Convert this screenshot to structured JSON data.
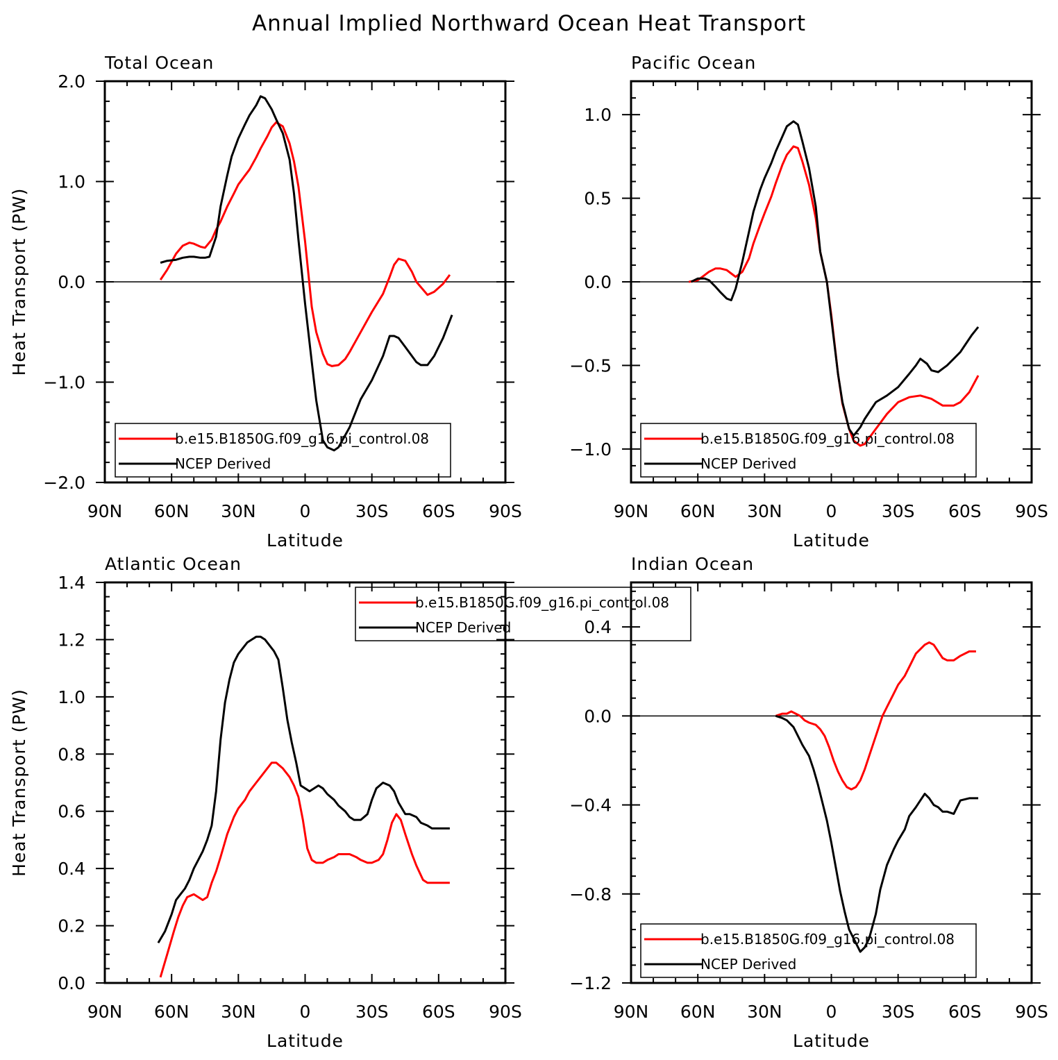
{
  "figure": {
    "title": "Annual Implied Northward Ocean Heat Transport",
    "xlabel": "Latitude",
    "ylabel": "Heat Transport (PW)"
  },
  "colors": {
    "model": "#ff0000",
    "obs": "#000000",
    "axes": "#000000"
  },
  "chart_data": [
    {
      "type": "line",
      "title": "Total Ocean",
      "xlabel": "Latitude",
      "ylabel": "Heat Transport (PW)",
      "xlim": [
        90,
        -90
      ],
      "ylim": [
        -2.0,
        2.0
      ],
      "xticks": [
        90,
        60,
        30,
        0,
        -30,
        -60,
        -90
      ],
      "xtick_labels": [
        "90N",
        "60N",
        "30N",
        "0",
        "30S",
        "60S",
        "90S"
      ],
      "yticks": [
        -2.0,
        -1.0,
        0.0,
        1.0,
        2.0
      ],
      "ytick_labels": [
        "−2.0",
        "−1.0",
        "0.0",
        "1.0",
        "2.0"
      ],
      "yminor": 0.2,
      "zero_line": true,
      "legend": "bottom-left",
      "series": [
        {
          "name": "b.e15.B1850G.f09_g16.pi_control.08",
          "color": "#ff0000",
          "x": [
            65,
            62,
            58,
            55,
            52,
            50,
            47,
            45,
            42,
            40,
            38,
            35,
            32,
            30,
            27,
            25,
            22,
            20,
            17,
            15,
            13,
            10,
            7,
            5,
            3,
            0,
            -3,
            -5,
            -8,
            -10,
            -12,
            -15,
            -18,
            -20,
            -25,
            -30,
            -35,
            -38,
            -40,
            -42,
            -45,
            -48,
            -50,
            -55,
            -58,
            -62,
            -65
          ],
          "y": [
            0.02,
            0.12,
            0.28,
            0.36,
            0.39,
            0.38,
            0.35,
            0.34,
            0.42,
            0.52,
            0.6,
            0.75,
            0.88,
            0.97,
            1.06,
            1.12,
            1.24,
            1.33,
            1.45,
            1.54,
            1.59,
            1.55,
            1.38,
            1.2,
            0.95,
            0.4,
            -0.25,
            -0.5,
            -0.72,
            -0.82,
            -0.84,
            -0.83,
            -0.77,
            -0.7,
            -0.5,
            -0.3,
            -0.12,
            0.05,
            0.17,
            0.23,
            0.21,
            0.1,
            0.0,
            -0.13,
            -0.1,
            -0.02,
            0.07
          ]
        },
        {
          "name": "NCEP Derived",
          "color": "#000000",
          "x": [
            65,
            62,
            58,
            55,
            52,
            50,
            47,
            45,
            43,
            40,
            38,
            35,
            33,
            30,
            27,
            25,
            22,
            20,
            18,
            15,
            13,
            10,
            7,
            5,
            3,
            0,
            -3,
            -5,
            -8,
            -10,
            -13,
            -15,
            -20,
            -25,
            -30,
            -35,
            -38,
            -40,
            -42,
            -45,
            -50,
            -52,
            -55,
            -58,
            -62,
            -66
          ],
          "y": [
            0.19,
            0.21,
            0.22,
            0.24,
            0.25,
            0.25,
            0.24,
            0.24,
            0.25,
            0.45,
            0.75,
            1.06,
            1.25,
            1.43,
            1.57,
            1.66,
            1.76,
            1.85,
            1.83,
            1.72,
            1.62,
            1.48,
            1.22,
            0.88,
            0.42,
            -0.22,
            -0.8,
            -1.18,
            -1.58,
            -1.65,
            -1.68,
            -1.65,
            -1.45,
            -1.17,
            -0.98,
            -0.74,
            -0.54,
            -0.54,
            -0.56,
            -0.65,
            -0.8,
            -0.83,
            -0.83,
            -0.74,
            -0.56,
            -0.33
          ]
        }
      ]
    },
    {
      "type": "line",
      "title": "Pacific Ocean",
      "xlabel": "Latitude",
      "ylabel": "",
      "xlim": [
        90,
        -90
      ],
      "ylim": [
        -1.2,
        1.2
      ],
      "xticks": [
        90,
        60,
        30,
        0,
        -30,
        -60,
        -90
      ],
      "xtick_labels": [
        "90N",
        "60N",
        "30N",
        "0",
        "30S",
        "60S",
        "90S"
      ],
      "yticks": [
        -1.0,
        -0.5,
        0.0,
        0.5,
        1.0
      ],
      "ytick_labels": [
        "−1.0",
        "−0.5",
        "0.0",
        "0.5",
        "1.0"
      ],
      "yminor": 0.1,
      "zero_line": true,
      "legend": "bottom-left",
      "series": [
        {
          "name": "b.e15.B1850G.f09_g16.pi_control.08",
          "color": "#ff0000",
          "x": [
            64,
            60,
            57,
            55,
            52,
            50,
            47,
            45,
            43,
            40,
            37,
            35,
            32,
            30,
            27,
            25,
            22,
            20,
            17,
            15,
            13,
            10,
            7,
            5,
            2,
            0,
            -3,
            -5,
            -8,
            -10,
            -13,
            -15,
            -20,
            -25,
            -30,
            -35,
            -40,
            -45,
            -50,
            -55,
            -58,
            -62,
            -66
          ],
          "y": [
            0.0,
            0.01,
            0.04,
            0.06,
            0.08,
            0.08,
            0.07,
            0.05,
            0.03,
            0.06,
            0.14,
            0.23,
            0.34,
            0.41,
            0.51,
            0.59,
            0.7,
            0.76,
            0.81,
            0.8,
            0.72,
            0.58,
            0.38,
            0.18,
            0.0,
            -0.2,
            -0.55,
            -0.73,
            -0.88,
            -0.95,
            -0.98,
            -0.97,
            -0.88,
            -0.79,
            -0.72,
            -0.69,
            -0.68,
            -0.7,
            -0.74,
            -0.74,
            -0.72,
            -0.66,
            -0.56
          ]
        },
        {
          "name": "NCEP Derived",
          "color": "#000000",
          "x": [
            63,
            60,
            57,
            55,
            52,
            50,
            47,
            45,
            43,
            40,
            37,
            35,
            32,
            30,
            27,
            25,
            22,
            20,
            17,
            15,
            13,
            10,
            7,
            5,
            2,
            0,
            -3,
            -5,
            -8,
            -10,
            -13,
            -15,
            -18,
            -20,
            -25,
            -30,
            -35,
            -38,
            -40,
            -43,
            -45,
            -48,
            -50,
            -52,
            -55,
            -58,
            -60,
            -63,
            -66
          ],
          "y": [
            0.0,
            0.02,
            0.02,
            0.01,
            -0.03,
            -0.06,
            -0.1,
            -0.11,
            -0.04,
            0.12,
            0.3,
            0.42,
            0.55,
            0.62,
            0.71,
            0.78,
            0.87,
            0.93,
            0.96,
            0.94,
            0.84,
            0.68,
            0.45,
            0.18,
            0.0,
            -0.22,
            -0.55,
            -0.72,
            -0.88,
            -0.92,
            -0.87,
            -0.82,
            -0.76,
            -0.72,
            -0.68,
            -0.63,
            -0.55,
            -0.5,
            -0.46,
            -0.49,
            -0.53,
            -0.54,
            -0.52,
            -0.5,
            -0.46,
            -0.42,
            -0.38,
            -0.32,
            -0.27
          ]
        }
      ]
    },
    {
      "type": "line",
      "title": "Atlantic Ocean",
      "xlabel": "Latitude",
      "ylabel": "Heat Transport (PW)",
      "xlim": [
        90,
        -90
      ],
      "ylim": [
        0.0,
        1.4
      ],
      "xticks": [
        90,
        60,
        30,
        0,
        -30,
        -60,
        -90
      ],
      "xtick_labels": [
        "90N",
        "60N",
        "30N",
        "0",
        "30S",
        "60S",
        "90S"
      ],
      "yticks": [
        0.0,
        0.2,
        0.4,
        0.6,
        0.8,
        1.0,
        1.2,
        1.4
      ],
      "ytick_labels": [
        "0.0",
        "0.2",
        "0.4",
        "0.6",
        "0.8",
        "1.0",
        "1.2",
        "1.4"
      ],
      "yminor": 0.05,
      "zero_line": false,
      "legend": "top-center",
      "series": [
        {
          "name": "b.e15.B1850G.f09_g16.pi_control.08",
          "color": "#ff0000",
          "x": [
            65,
            62,
            59,
            57,
            55,
            53,
            50,
            48,
            46,
            44,
            42,
            40,
            38,
            35,
            32,
            30,
            27,
            25,
            22,
            20,
            17,
            15,
            13,
            10,
            7,
            5,
            3,
            1,
            -1,
            -3,
            -5,
            -8,
            -10,
            -13,
            -15,
            -18,
            -20,
            -23,
            -25,
            -28,
            -30,
            -33,
            -35,
            -37,
            -39,
            -41,
            -43,
            -45,
            -48,
            -50,
            -53,
            -55,
            -58,
            -62,
            -65
          ],
          "y": [
            0.02,
            0.1,
            0.18,
            0.23,
            0.27,
            0.3,
            0.31,
            0.3,
            0.29,
            0.3,
            0.35,
            0.39,
            0.44,
            0.52,
            0.58,
            0.61,
            0.64,
            0.67,
            0.7,
            0.72,
            0.75,
            0.77,
            0.77,
            0.75,
            0.72,
            0.69,
            0.65,
            0.57,
            0.47,
            0.43,
            0.42,
            0.42,
            0.43,
            0.44,
            0.45,
            0.45,
            0.45,
            0.44,
            0.43,
            0.42,
            0.42,
            0.43,
            0.45,
            0.5,
            0.56,
            0.59,
            0.57,
            0.52,
            0.45,
            0.41,
            0.36,
            0.35,
            0.35,
            0.35,
            0.35
          ]
        },
        {
          "name": "NCEP Derived",
          "color": "#000000",
          "x": [
            66,
            63,
            60,
            58,
            56,
            54,
            52,
            50,
            48,
            46,
            44,
            42,
            40,
            38,
            36,
            34,
            32,
            30,
            28,
            26,
            24,
            22,
            20,
            18,
            16,
            14,
            12,
            10,
            8,
            6,
            4,
            2,
            0,
            -2,
            -4,
            -6,
            -8,
            -10,
            -13,
            -15,
            -18,
            -20,
            -22,
            -25,
            -28,
            -30,
            -32,
            -35,
            -38,
            -40,
            -42,
            -45,
            -47,
            -50,
            -52,
            -55,
            -57,
            -60,
            -62,
            -65
          ],
          "y": [
            0.14,
            0.18,
            0.24,
            0.29,
            0.31,
            0.33,
            0.36,
            0.4,
            0.43,
            0.46,
            0.5,
            0.55,
            0.67,
            0.85,
            0.98,
            1.06,
            1.12,
            1.15,
            1.17,
            1.19,
            1.2,
            1.21,
            1.21,
            1.2,
            1.18,
            1.16,
            1.13,
            1.03,
            0.92,
            0.84,
            0.77,
            0.69,
            0.68,
            0.67,
            0.68,
            0.69,
            0.68,
            0.66,
            0.64,
            0.62,
            0.6,
            0.58,
            0.57,
            0.57,
            0.59,
            0.64,
            0.68,
            0.7,
            0.69,
            0.67,
            0.63,
            0.59,
            0.59,
            0.58,
            0.56,
            0.55,
            0.54,
            0.54,
            0.54,
            0.54
          ]
        }
      ]
    },
    {
      "type": "line",
      "title": "Indian Ocean",
      "xlabel": "Latitude",
      "ylabel": "",
      "xlim": [
        90,
        -90
      ],
      "ylim": [
        -1.2,
        0.6
      ],
      "xticks": [
        90,
        60,
        30,
        0,
        -30,
        -60,
        -90
      ],
      "xtick_labels": [
        "90N",
        "60N",
        "30N",
        "0",
        "30S",
        "60S",
        "90S"
      ],
      "yticks": [
        -1.2,
        -0.8,
        -0.4,
        0.0,
        0.4
      ],
      "ytick_labels": [
        "−1.2",
        "−0.8",
        "−0.4",
        "0.0",
        "0.4"
      ],
      "yminor": 0.08,
      "zero_line": true,
      "legend": "bottom-left",
      "series": [
        {
          "name": "b.e15.B1850G.f09_g16.pi_control.08",
          "color": "#ff0000",
          "x": [
            25,
            22,
            20,
            18,
            16,
            14,
            12,
            10,
            7,
            5,
            3,
            1,
            -1,
            -3,
            -5,
            -7,
            -9,
            -11,
            -13,
            -15,
            -17,
            -19,
            -21,
            -23,
            -25,
            -28,
            -30,
            -33,
            -35,
            -38,
            -40,
            -42,
            -44,
            -46,
            -48,
            -50,
            -52,
            -55,
            -58,
            -62,
            -65
          ],
          "y": [
            0.0,
            0.01,
            0.01,
            0.02,
            0.01,
            0.0,
            -0.02,
            -0.03,
            -0.04,
            -0.06,
            -0.09,
            -0.14,
            -0.2,
            -0.25,
            -0.29,
            -0.32,
            -0.33,
            -0.32,
            -0.29,
            -0.24,
            -0.18,
            -0.12,
            -0.06,
            0.0,
            0.04,
            0.1,
            0.14,
            0.18,
            0.22,
            0.28,
            0.3,
            0.32,
            0.33,
            0.32,
            0.29,
            0.26,
            0.25,
            0.25,
            0.27,
            0.29,
            0.29
          ]
        },
        {
          "name": "NCEP Derived",
          "color": "#000000",
          "x": [
            25,
            22,
            20,
            17,
            15,
            13,
            10,
            8,
            6,
            4,
            2,
            0,
            -2,
            -4,
            -6,
            -8,
            -10,
            -12,
            -13,
            -15,
            -17,
            -20,
            -22,
            -25,
            -28,
            -30,
            -33,
            -35,
            -38,
            -40,
            -42,
            -44,
            -46,
            -48,
            -50,
            -52,
            -55,
            -58,
            -62,
            -66
          ],
          "y": [
            0.0,
            -0.01,
            -0.02,
            -0.05,
            -0.09,
            -0.13,
            -0.18,
            -0.24,
            -0.31,
            -0.39,
            -0.47,
            -0.57,
            -0.68,
            -0.79,
            -0.88,
            -0.96,
            -1.0,
            -1.04,
            -1.06,
            -1.04,
            -1.0,
            -0.89,
            -0.78,
            -0.67,
            -0.6,
            -0.56,
            -0.51,
            -0.45,
            -0.41,
            -0.38,
            -0.35,
            -0.37,
            -0.4,
            -0.41,
            -0.43,
            -0.43,
            -0.44,
            -0.38,
            -0.37,
            -0.37
          ]
        }
      ]
    }
  ]
}
